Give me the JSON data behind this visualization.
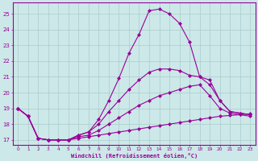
{
  "bg_color": "#cce8e8",
  "grid_color": "#aacccc",
  "line_color": "#990099",
  "marker_color": "#990099",
  "xlabel": "Windchill (Refroidissement éolien,°C)",
  "xlabel_color": "#990099",
  "xlim": [
    -0.5,
    23.5
  ],
  "ylim": [
    16.7,
    25.7
  ],
  "yticks": [
    17,
    18,
    19,
    20,
    21,
    22,
    23,
    24,
    25
  ],
  "xticks": [
    0,
    1,
    2,
    3,
    4,
    5,
    6,
    7,
    8,
    9,
    10,
    11,
    12,
    13,
    14,
    15,
    16,
    17,
    18,
    19,
    20,
    21,
    22,
    23
  ],
  "curves": [
    {
      "x": [
        0,
        1,
        2,
        3,
        4,
        5,
        6,
        7,
        8,
        9,
        10,
        11,
        12,
        13,
        14,
        15,
        16,
        17,
        18,
        19,
        20,
        21,
        22,
        23
      ],
      "y": [
        19.0,
        18.5,
        17.1,
        17.0,
        17.0,
        17.0,
        17.1,
        17.2,
        17.3,
        17.4,
        17.5,
        17.6,
        17.7,
        17.8,
        17.9,
        18.0,
        18.1,
        18.2,
        18.3,
        18.4,
        18.5,
        18.55,
        18.6,
        18.65
      ]
    },
    {
      "x": [
        0,
        1,
        2,
        3,
        4,
        5,
        6,
        7,
        8,
        9,
        10,
        11,
        12,
        13,
        14,
        15,
        16,
        17,
        18,
        19,
        20,
        21,
        22,
        23
      ],
      "y": [
        19.0,
        18.5,
        17.1,
        17.0,
        17.0,
        17.0,
        17.2,
        17.3,
        17.6,
        18.0,
        18.4,
        18.8,
        19.2,
        19.5,
        19.8,
        20.0,
        20.2,
        20.4,
        20.5,
        19.8,
        19.0,
        18.7,
        18.6,
        18.5
      ]
    },
    {
      "x": [
        0,
        1,
        2,
        3,
        4,
        5,
        6,
        7,
        8,
        9,
        10,
        11,
        12,
        13,
        14,
        15,
        16,
        17,
        18,
        19,
        20,
        21,
        22,
        23
      ],
      "y": [
        19.0,
        18.5,
        17.1,
        17.0,
        17.0,
        17.0,
        17.3,
        17.5,
        18.0,
        18.8,
        19.5,
        20.2,
        20.8,
        21.3,
        21.5,
        21.5,
        21.4,
        21.1,
        21.0,
        20.8,
        19.5,
        18.8,
        18.7,
        18.6
      ]
    },
    {
      "x": [
        0,
        1,
        2,
        3,
        4,
        5,
        6,
        7,
        8,
        9,
        10,
        11,
        12,
        13,
        14,
        15,
        16,
        17,
        18,
        19,
        20,
        21,
        22,
        23
      ],
      "y": [
        19.0,
        18.5,
        17.1,
        17.0,
        17.0,
        17.0,
        17.3,
        17.5,
        18.3,
        19.5,
        20.9,
        22.5,
        23.7,
        25.2,
        25.3,
        25.0,
        24.4,
        23.2,
        21.0,
        20.5,
        19.5,
        18.8,
        18.7,
        18.6
      ]
    }
  ]
}
